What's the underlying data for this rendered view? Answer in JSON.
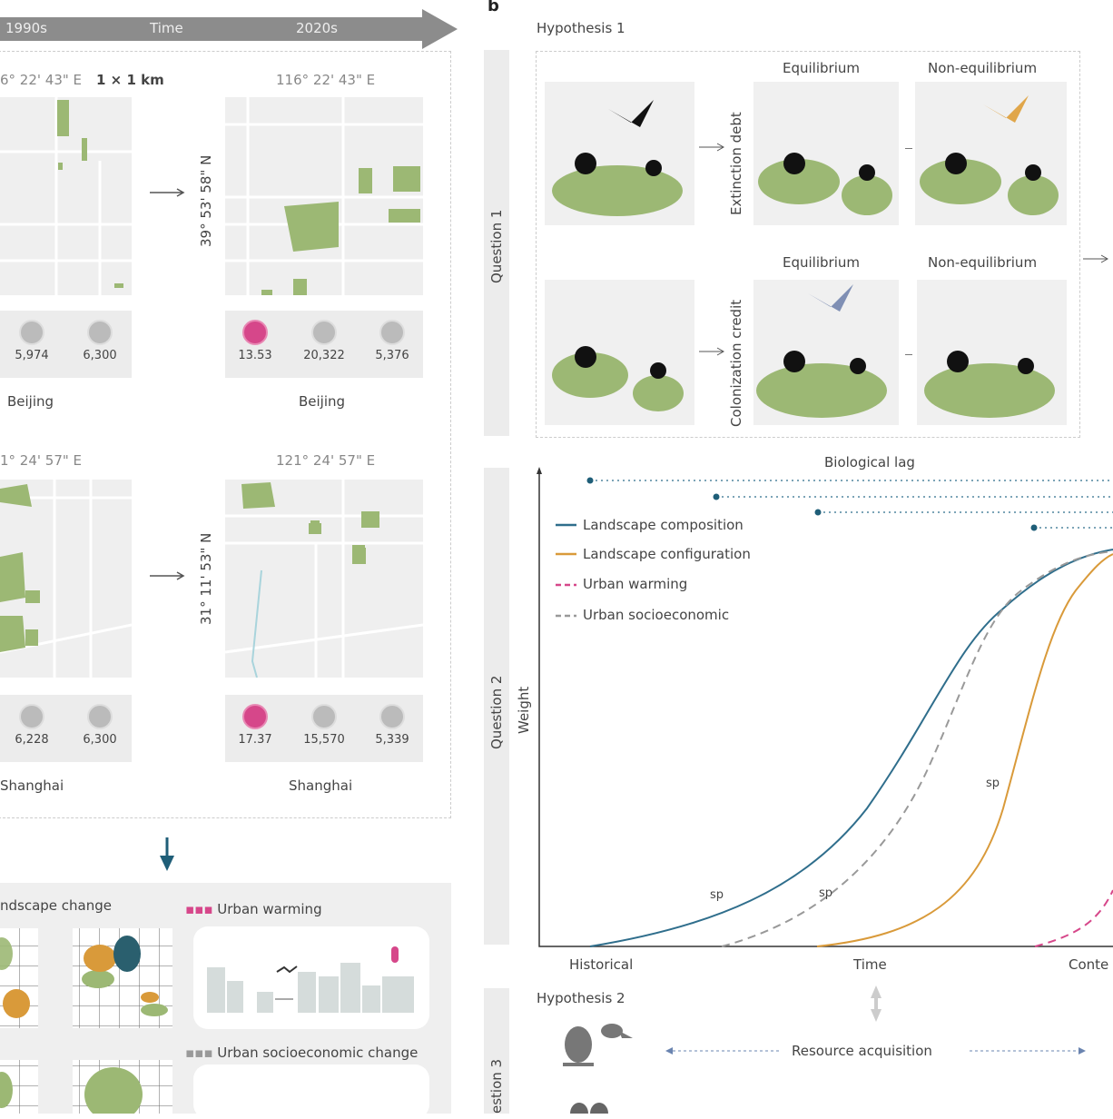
{
  "panel_a": {
    "timeline": {
      "start": "1990s",
      "label": "Time",
      "end": "2020s"
    },
    "scale": "1 × 1 km",
    "beijing": {
      "lon": "116° 22' 43\" E",
      "lon_left": "6° 22' 43\" E",
      "lat": "39° 53' 58\" N",
      "name": "Beijing",
      "before": [
        "5,974",
        "6,300"
      ],
      "after": [
        "13.53",
        "20,322",
        "5,376"
      ]
    },
    "shanghai": {
      "lon": "121° 24' 57\" E",
      "lon_left": "1° 24' 57\" E",
      "lat": "31° 11' 53\" N",
      "name": "Shanghai",
      "before": [
        "6,228",
        "6,300"
      ],
      "after": [
        "17.37",
        "15,570",
        "5,339"
      ]
    },
    "drivers": {
      "landscape": "ndscape change",
      "warming": "Urban warming",
      "socio": "Urban socioeconomic change"
    }
  },
  "panel_b": {
    "letter": "b",
    "hypothesis1": "Hypothesis 1",
    "hypothesis2": "Hypothesis 2",
    "questions": [
      "Question 1",
      "Question 2",
      "estion 3"
    ],
    "equilibrium": "Equilibrium",
    "non_equilibrium": "Non-equilibrium",
    "extinction_debt": "Extinction debt",
    "colonization_credit": "Colonization credit",
    "resource": "Resource acquisition"
  },
  "chart_data": {
    "type": "line",
    "title": "Biological lag",
    "xlabel": "Time",
    "ylabel": "Weight",
    "x_ticks": [
      "Historical",
      "Conte"
    ],
    "legend": [
      "Landscape composition",
      "Landscape configuration",
      "Urban warming",
      "Urban socioeconomic"
    ],
    "series_colors": {
      "Landscape composition": "#2f6e8c",
      "Landscape configuration": "#d99a3a",
      "Urban warming": "#d6478a",
      "Urban socioeconomic": "#999999"
    },
    "annotations": [
      "sp",
      "sp",
      "sp"
    ]
  }
}
